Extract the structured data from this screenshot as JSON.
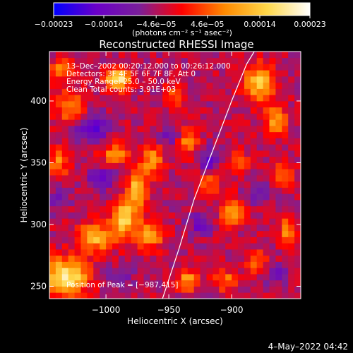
{
  "chart_data": {
    "type": "heatmap",
    "title": "Reconstructed RHESSI Image",
    "xlabel": "Heliocentric X (arcsec)",
    "ylabel": "Heliocentric Y (arcsec)",
    "xlim": [
      -1045,
      -845
    ],
    "ylim": [
      240,
      440
    ],
    "x_ticks": [
      -1000,
      -950,
      -900
    ],
    "x_tick_labels": [
      "−1000",
      "−950",
      "−900"
    ],
    "y_ticks": [
      250,
      300,
      350,
      400
    ],
    "y_tick_labels": [
      "250",
      "300",
      "350",
      "400"
    ],
    "grid": false,
    "colorbar": {
      "range": [
        -0.00023,
        0.00023
      ],
      "ticks": [
        -0.00023,
        -0.00014,
        -4.6e-05,
        4.6e-05,
        0.00014,
        0.00023
      ],
      "tick_labels": [
        "−0.00023",
        "−0.00014",
        "−4.6e−05",
        "4.6e−05",
        "0.00014",
        "0.00023"
      ],
      "units_text": "(photons cm⁻² s⁻¹ asec⁻²)",
      "colors": [
        "#0000ff",
        "#6a00c8",
        "#7a1f9a",
        "#ff0000",
        "#ff8a00",
        "#ffd84a",
        "#ffffff"
      ]
    },
    "annotations": {
      "time_range": "13–Dec–2002 00:20:12.000 to 00:26:12.000",
      "detectors": "Detectors: 3F 4F 5F 6F 7F 8F, Att 0",
      "energy_range": "Energy Range: 25.0 – 50.0 keV",
      "clean": "Clean    Total counts: 3.91E+03",
      "peak": "Position of Peak = [−987,415]"
    },
    "peak_position": [
      -987,
      415
    ],
    "limb_curve": [
      [
        -955,
        240
      ],
      [
        -942,
        280
      ],
      [
        -930,
        320
      ],
      [
        -915,
        360
      ],
      [
        -900,
        400
      ],
      [
        -888,
        430
      ],
      [
        -882,
        440
      ]
    ],
    "blobs": [
      {
        "x": -1032,
        "y": 258,
        "v": 0.00023,
        "sx": 12,
        "sy": 10
      },
      {
        "x": -1008,
        "y": 290,
        "v": 0.00016,
        "sx": 10,
        "sy": 8
      },
      {
        "x": -985,
        "y": 305,
        "v": 0.00019,
        "sx": 7,
        "sy": 10
      },
      {
        "x": -965,
        "y": 292,
        "v": 0.00015,
        "sx": 7,
        "sy": 8
      },
      {
        "x": -975,
        "y": 330,
        "v": 0.00017,
        "sx": 6,
        "sy": 10
      },
      {
        "x": -993,
        "y": 358,
        "v": 0.00012,
        "sx": 8,
        "sy": 6
      },
      {
        "x": -963,
        "y": 352,
        "v": 0.00014,
        "sx": 6,
        "sy": 8
      },
      {
        "x": -990,
        "y": 418,
        "v": 0.00022,
        "sx": 7,
        "sy": 6
      },
      {
        "x": -1028,
        "y": 395,
        "v": 0.00012,
        "sx": 8,
        "sy": 10
      },
      {
        "x": -1038,
        "y": 350,
        "v": 0.00013,
        "sx": 5,
        "sy": 8
      },
      {
        "x": -1035,
        "y": 425,
        "v": 0.00011,
        "sx": 7,
        "sy": 6
      },
      {
        "x": -935,
        "y": 368,
        "v": 0.00012,
        "sx": 6,
        "sy": 7
      },
      {
        "x": -918,
        "y": 335,
        "v": 0.00011,
        "sx": 6,
        "sy": 7
      },
      {
        "x": -900,
        "y": 310,
        "v": 0.00015,
        "sx": 6,
        "sy": 8
      },
      {
        "x": -878,
        "y": 415,
        "v": 0.00018,
        "sx": 8,
        "sy": 10
      },
      {
        "x": -865,
        "y": 385,
        "v": 0.00014,
        "sx": 6,
        "sy": 8
      },
      {
        "x": -895,
        "y": 350,
        "v": 0.0001,
        "sx": 6,
        "sy": 6
      },
      {
        "x": -860,
        "y": 340,
        "v": 0.00011,
        "sx": 6,
        "sy": 6
      },
      {
        "x": -880,
        "y": 270,
        "v": 0.0001,
        "sx": 6,
        "sy": 6
      },
      {
        "x": -905,
        "y": 255,
        "v": 0.0001,
        "sx": 6,
        "sy": 6
      },
      {
        "x": -855,
        "y": 295,
        "v": 0.00012,
        "sx": 5,
        "sy": 8
      },
      {
        "x": -935,
        "y": 255,
        "v": 0.00013,
        "sx": 6,
        "sy": 6
      },
      {
        "x": -945,
        "y": 405,
        "v": 9e-05,
        "sx": 6,
        "sy": 6
      },
      {
        "x": -1012,
        "y": 378,
        "v": -0.00012,
        "sx": 10,
        "sy": 8
      },
      {
        "x": -1003,
        "y": 337,
        "v": -0.0001,
        "sx": 8,
        "sy": 6
      },
      {
        "x": -948,
        "y": 372,
        "v": -8e-05,
        "sx": 6,
        "sy": 6
      },
      {
        "x": -918,
        "y": 350,
        "v": -0.00011,
        "sx": 5,
        "sy": 8
      },
      {
        "x": -925,
        "y": 300,
        "v": -0.0001,
        "sx": 6,
        "sy": 6
      },
      {
        "x": -880,
        "y": 325,
        "v": -8e-05,
        "sx": 6,
        "sy": 6
      },
      {
        "x": -1038,
        "y": 320,
        "v": -7e-05,
        "sx": 6,
        "sy": 6
      },
      {
        "x": -990,
        "y": 255,
        "v": -6e-05,
        "sx": 8,
        "sy": 6
      },
      {
        "x": -865,
        "y": 260,
        "v": -7e-05,
        "sx": 6,
        "sy": 6
      }
    ]
  },
  "footer": {
    "timestamp": "4–May–2022 04:42"
  }
}
